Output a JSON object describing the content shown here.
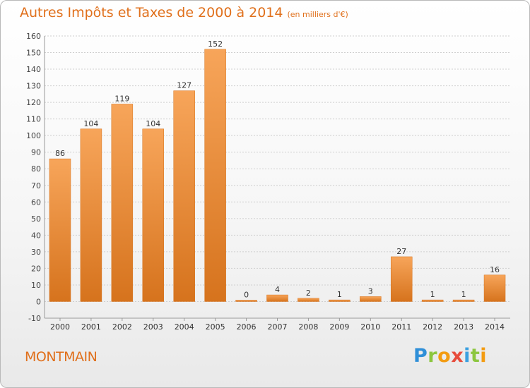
{
  "title": "Autres Impôts et Taxes de 2000 à 2014",
  "subtitle": "(en milliers d'€)",
  "town": "MONTMAIN",
  "logo_text": "Proxiti",
  "colors": {
    "accent": "#e0701c",
    "bar_light": "#f7a55a",
    "bar_dark": "#d6731d",
    "grid": "#cfcfcf"
  },
  "chart_data": {
    "type": "bar",
    "categories": [
      "2000",
      "2001",
      "2002",
      "2003",
      "2004",
      "2005",
      "2006",
      "2007",
      "2008",
      "2009",
      "2010",
      "2011",
      "2012",
      "2013",
      "2014"
    ],
    "values": [
      86,
      104,
      119,
      104,
      127,
      152,
      0,
      4,
      2,
      1,
      3,
      27,
      1,
      1,
      16
    ],
    "ylim": [
      -10,
      160
    ],
    "yticks": [
      -10,
      0,
      10,
      20,
      30,
      40,
      50,
      60,
      70,
      80,
      90,
      100,
      110,
      120,
      130,
      140,
      150,
      160
    ],
    "grid": true,
    "legend": "none"
  }
}
